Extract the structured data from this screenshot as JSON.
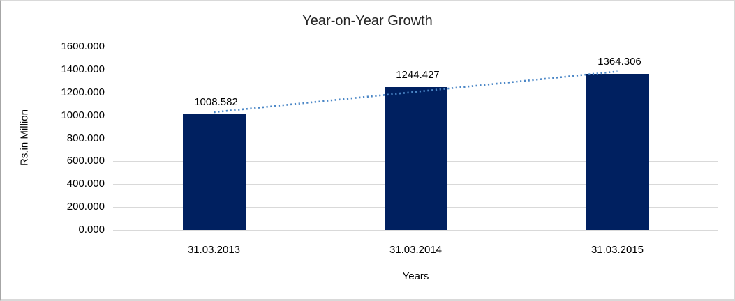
{
  "chart_data": {
    "type": "bar",
    "title": "Year-on-Year Growth",
    "categories": [
      "31.03.2013",
      "31.03.2014",
      "31.03.2015"
    ],
    "values": [
      1008.582,
      1244.427,
      1364.306
    ],
    "data_labels": [
      "1008.582",
      "1244.427",
      "1364.306"
    ],
    "xlabel": "Years",
    "ylabel": "Rs.in Million",
    "ylim": [
      0,
      1600
    ],
    "ytick_step": 200,
    "ytick_labels": [
      "0.000",
      "200.000",
      "400.000",
      "600.000",
      "800.000",
      "1000.000",
      "1200.000",
      "1400.000",
      "1600.000"
    ],
    "grid": true,
    "legend": false,
    "trendline": {
      "kind": "linear",
      "style": "dotted"
    },
    "colors": {
      "bar": "#002060",
      "trendline": "#4a86c6",
      "gridline": "#d9d9d9",
      "text": "#000000",
      "title": "#262626",
      "frame_border": "#d9d9d9"
    }
  }
}
